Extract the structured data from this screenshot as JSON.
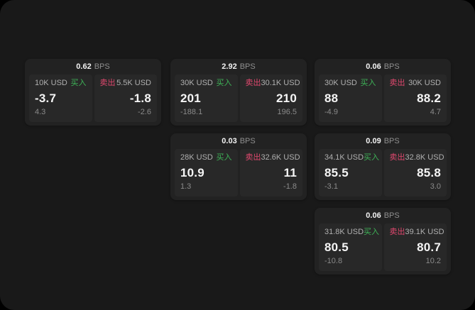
{
  "labels": {
    "buy": "买入",
    "sell": "卖出",
    "bps": "BPS"
  },
  "colors": {
    "buy_green": "#3eb357",
    "sell_red": "#e0486e",
    "panel_bg": "#191919",
    "card_bg": "#222222",
    "tile_bg": "#282828",
    "price_text": "#f5f5f5",
    "muted_text": "#8a8a8a"
  },
  "cards": [
    {
      "bps": "0.62",
      "buy": {
        "amount": "10K USD",
        "price": "-3.7",
        "delta": "4.3"
      },
      "sell": {
        "amount": "5.5K USD",
        "price": "-1.8",
        "delta": "-2.6"
      }
    },
    {
      "bps": "2.92",
      "buy": {
        "amount": "30K USD",
        "price": "201",
        "delta": "-188.1"
      },
      "sell": {
        "amount": "30.1K USD",
        "price": "210",
        "delta": "196.5"
      }
    },
    {
      "bps": "0.06",
      "buy": {
        "amount": "30K USD",
        "price": "88",
        "delta": "-4.9"
      },
      "sell": {
        "amount": "30K USD",
        "price": "88.2",
        "delta": "4.7"
      }
    },
    {
      "bps": "0.03",
      "buy": {
        "amount": "28K USD",
        "price": "10.9",
        "delta": "1.3"
      },
      "sell": {
        "amount": "32.6K USD",
        "price": "11",
        "delta": "-1.8"
      }
    },
    {
      "bps": "0.09",
      "buy": {
        "amount": "34.1K USD",
        "price": "85.5",
        "delta": "-3.1"
      },
      "sell": {
        "amount": "32.8K USD",
        "price": "85.8",
        "delta": "3.0"
      }
    },
    {
      "bps": "0.06",
      "buy": {
        "amount": "31.8K USD",
        "price": "80.5",
        "delta": "-10.8"
      },
      "sell": {
        "amount": "39.1K USD",
        "price": "80.7",
        "delta": "10.2"
      }
    }
  ]
}
